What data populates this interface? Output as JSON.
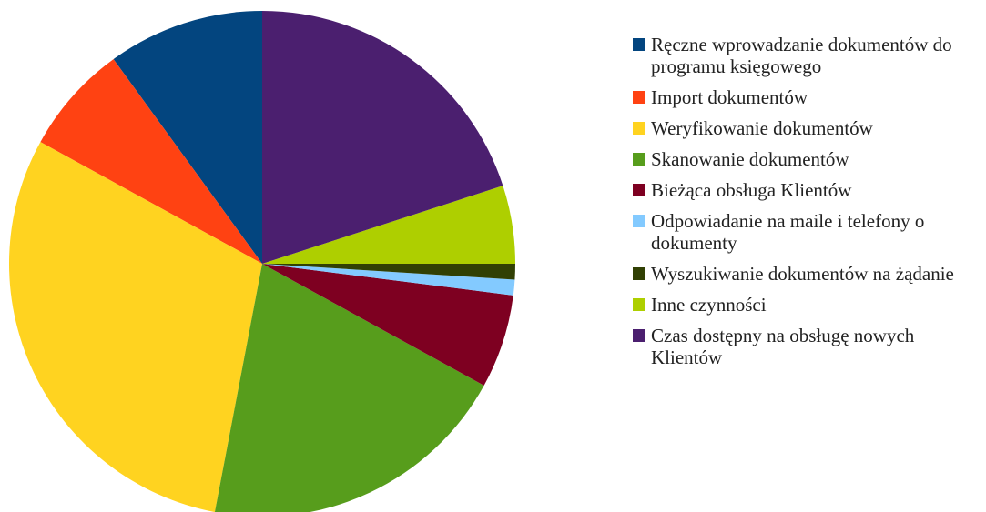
{
  "chart_data": {
    "type": "pie",
    "categories": [
      "Ręczne wprowadzanie dokumentów do programu księgowego",
      "Import dokumentów",
      "Weryfikowanie dokumentów",
      "Skanowanie dokumentów",
      "Bieżąca obsługa Klientów",
      "Odpowiadanie na maile i telefony o dokumenty",
      "Wyszukiwanie dokumentów na żądanie",
      "Inne czynności",
      "Czas dostępny na obsługę nowych Klientów"
    ],
    "values": [
      10,
      7,
      30,
      20,
      6,
      1,
      1,
      5,
      20
    ],
    "colors": [
      "#03457f",
      "#ff4212",
      "#ffd320",
      "#579d1c",
      "#7e0021",
      "#83caff",
      "#314004",
      "#aecf00",
      "#4b1f6f"
    ],
    "legend": "right"
  }
}
